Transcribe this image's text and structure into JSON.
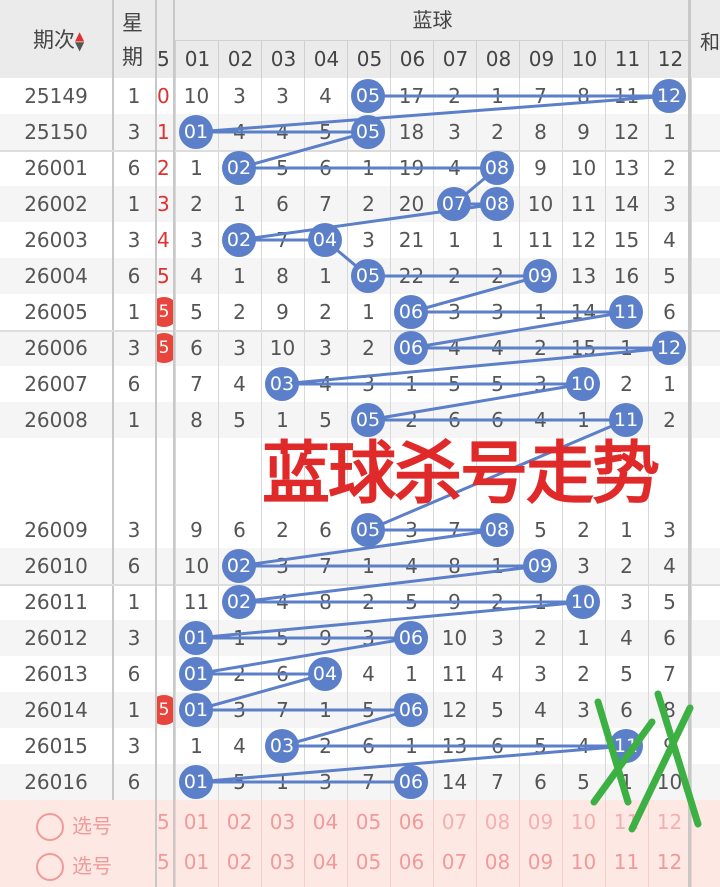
{
  "header": {
    "issue_label": "期次",
    "weekday_label": "星期",
    "blue_label": "蓝球",
    "sort_icon": "sort-up-down-icon",
    "partial_col": "5",
    "right_partial": "和",
    "columns": [
      "01",
      "02",
      "03",
      "04",
      "05",
      "06",
      "07",
      "08",
      "09",
      "10",
      "11",
      "12"
    ]
  },
  "colors": {
    "ball": "#5b7fc8",
    "red_ball": "#e8453c",
    "overlay": "#e02a2a",
    "marks": "#3cb043",
    "pick_bg": "#fde8e4"
  },
  "rows": [
    {
      "issue": "25149",
      "weekday": "1",
      "side": "0",
      "side_ball": false,
      "cells": [
        "10",
        "3",
        "3",
        "4",
        "05",
        "17",
        "2",
        "1",
        "7",
        "8",
        "11",
        "12"
      ],
      "balls": [
        5,
        12
      ]
    },
    {
      "issue": "25150",
      "weekday": "3",
      "side": "1",
      "side_ball": false,
      "cells": [
        "01",
        "4",
        "4",
        "5",
        "05",
        "18",
        "3",
        "2",
        "8",
        "9",
        "12",
        "1"
      ],
      "balls": [
        1,
        5
      ]
    },
    {
      "issue": "26001",
      "weekday": "6",
      "side": "2",
      "side_ball": false,
      "cells": [
        "1",
        "02",
        "5",
        "6",
        "1",
        "19",
        "4",
        "08",
        "9",
        "10",
        "13",
        "2"
      ],
      "balls": [
        2,
        8
      ]
    },
    {
      "issue": "26002",
      "weekday": "1",
      "side": "3",
      "side_ball": false,
      "cells": [
        "2",
        "1",
        "6",
        "7",
        "2",
        "20",
        "07",
        "08",
        "10",
        "11",
        "14",
        "3"
      ],
      "balls": [
        7,
        8
      ]
    },
    {
      "issue": "26003",
      "weekday": "3",
      "side": "4",
      "side_ball": false,
      "cells": [
        "3",
        "02",
        "7",
        "04",
        "3",
        "21",
        "1",
        "1",
        "11",
        "12",
        "15",
        "4"
      ],
      "balls": [
        2,
        4
      ]
    },
    {
      "issue": "26004",
      "weekday": "6",
      "side": "5",
      "side_ball": false,
      "cells": [
        "4",
        "1",
        "8",
        "1",
        "05",
        "22",
        "2",
        "2",
        "09",
        "13",
        "16",
        "5"
      ],
      "balls": [
        5,
        9
      ]
    },
    {
      "issue": "26005",
      "weekday": "1",
      "side": "5",
      "side_ball": true,
      "cells": [
        "5",
        "2",
        "9",
        "2",
        "1",
        "06",
        "3",
        "3",
        "1",
        "14",
        "11",
        "6"
      ],
      "balls": [
        6,
        11
      ]
    },
    {
      "issue": "26006",
      "weekday": "3",
      "side": "5",
      "side_ball": true,
      "cells": [
        "6",
        "3",
        "10",
        "3",
        "2",
        "06",
        "4",
        "4",
        "2",
        "15",
        "1",
        "12"
      ],
      "balls": [
        6,
        12
      ]
    },
    {
      "issue": "26007",
      "weekday": "6",
      "side": "",
      "side_ball": false,
      "cells": [
        "7",
        "4",
        "03",
        "4",
        "3",
        "1",
        "5",
        "5",
        "3",
        "10",
        "2",
        "1"
      ],
      "balls": [
        3,
        10
      ]
    },
    {
      "issue": "26008",
      "weekday": "1",
      "side": "",
      "side_ball": false,
      "cells": [
        "8",
        "5",
        "1",
        "5",
        "05",
        "2",
        "6",
        "6",
        "4",
        "1",
        "11",
        "2"
      ],
      "balls": [
        5,
        11
      ]
    },
    {
      "issue": "26009",
      "weekday": "3",
      "side": "",
      "side_ball": false,
      "cells": [
        "9",
        "6",
        "2",
        "6",
        "05",
        "3",
        "7",
        "08",
        "5",
        "2",
        "1",
        "3"
      ],
      "balls": [
        5,
        8
      ]
    },
    {
      "issue": "26010",
      "weekday": "6",
      "side": "",
      "side_ball": false,
      "cells": [
        "10",
        "02",
        "3",
        "7",
        "1",
        "4",
        "8",
        "1",
        "09",
        "3",
        "2",
        "4"
      ],
      "balls": [
        2,
        9
      ]
    },
    {
      "issue": "26011",
      "weekday": "1",
      "side": "",
      "side_ball": false,
      "cells": [
        "11",
        "02",
        "4",
        "8",
        "2",
        "5",
        "9",
        "2",
        "1",
        "10",
        "3",
        "5"
      ],
      "balls": [
        2,
        10
      ]
    },
    {
      "issue": "26012",
      "weekday": "3",
      "side": "",
      "side_ball": false,
      "cells": [
        "01",
        "1",
        "5",
        "9",
        "3",
        "06",
        "10",
        "3",
        "2",
        "1",
        "4",
        "6"
      ],
      "balls": [
        1,
        6
      ]
    },
    {
      "issue": "26013",
      "weekday": "6",
      "side": "",
      "side_ball": false,
      "cells": [
        "01",
        "2",
        "6",
        "04",
        "4",
        "1",
        "11",
        "4",
        "3",
        "2",
        "5",
        "7"
      ],
      "balls": [
        1,
        4
      ]
    },
    {
      "issue": "26014",
      "weekday": "1",
      "side": "5",
      "side_ball": true,
      "cells": [
        "01",
        "3",
        "7",
        "1",
        "5",
        "06",
        "12",
        "5",
        "4",
        "3",
        "6",
        "8"
      ],
      "balls": [
        1,
        6
      ]
    },
    {
      "issue": "26015",
      "weekday": "3",
      "side": "",
      "side_ball": false,
      "cells": [
        "1",
        "4",
        "03",
        "2",
        "6",
        "1",
        "13",
        "6",
        "5",
        "4",
        "11",
        "9"
      ],
      "balls": [
        3,
        11
      ]
    },
    {
      "issue": "26016",
      "weekday": "6",
      "side": "",
      "side_ball": false,
      "cells": [
        "01",
        "5",
        "1",
        "3",
        "7",
        "06",
        "14",
        "7",
        "6",
        "5",
        "1",
        "10"
      ],
      "balls": [
        1,
        6
      ]
    }
  ],
  "pick_rows": [
    {
      "label": "选号",
      "side": "5"
    },
    {
      "label": "选号",
      "side": "5"
    }
  ],
  "overlay_text": "蓝球杀号走势"
}
